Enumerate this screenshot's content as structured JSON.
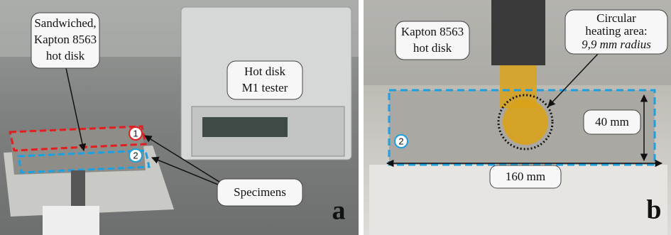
{
  "panels": [
    {
      "letter": "a",
      "hot_disk_label": [
        "Sandwiched,",
        "Kapton 8563",
        "hot disk"
      ],
      "tester_label": [
        "Hot disk",
        "M1 tester"
      ],
      "specimens_label": "Specimens",
      "markers": [
        "1",
        "2"
      ]
    },
    {
      "letter": "b",
      "hot_disk_label": [
        "Kapton 8563",
        "hot disk"
      ],
      "heating_label": [
        "Circular",
        "heating area:",
        "9,9 mm radius"
      ],
      "height_label": "40 mm",
      "length_label": "160 mm",
      "markers": [
        "2"
      ]
    }
  ]
}
